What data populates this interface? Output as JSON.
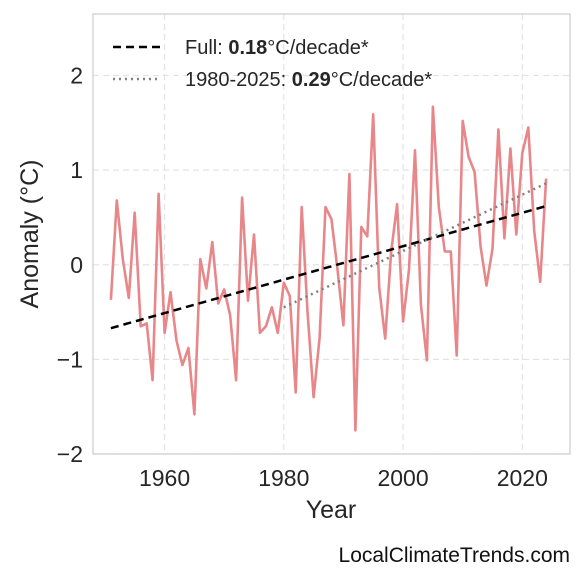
{
  "credit": "LocalClimateTrends.com",
  "chart_data": {
    "type": "line",
    "xlabel": "Year",
    "ylabel": "Anomaly (°C)",
    "xlim": [
      1948,
      2028
    ],
    "ylim": [
      -2,
      2.65
    ],
    "x_ticks": [
      1960,
      1980,
      2000,
      2020
    ],
    "y_ticks": [
      -2,
      -1,
      0,
      1,
      2
    ],
    "y_tick_labels": [
      "−2",
      "−1",
      "0",
      "1",
      "2"
    ],
    "grid": true,
    "legend_position": "top-left",
    "colors": {
      "series": "#e8878a",
      "full_trend": "#000000",
      "recent_trend": "#808080"
    },
    "series": [
      {
        "x": [
          1951,
          1952,
          1953,
          1954,
          1955,
          1956,
          1957,
          1958,
          1959,
          1960,
          1961,
          1962,
          1963,
          1964,
          1965,
          1966,
          1967,
          1968,
          1969,
          1970,
          1971,
          1972,
          1973,
          1974,
          1975,
          1976,
          1977,
          1978,
          1979,
          1980,
          1981,
          1982,
          1983,
          1984,
          1985,
          1986,
          1987,
          1988,
          1989,
          1990,
          1991,
          1992,
          1993,
          1994,
          1995,
          1996,
          1997,
          1998,
          1999,
          2000,
          2001,
          2002,
          2003,
          2004,
          2005,
          2006,
          2007,
          2008,
          2009,
          2010,
          2011,
          2012,
          2013,
          2014,
          2015,
          2016,
          2017,
          2018,
          2019,
          2020,
          2021,
          2022,
          2023,
          2024
        ],
        "values": [
          -0.37,
          0.68,
          0.06,
          -0.35,
          0.55,
          -0.65,
          -0.62,
          -1.22,
          0.75,
          -0.72,
          -0.29,
          -0.8,
          -1.06,
          -0.88,
          -1.58,
          0.06,
          -0.25,
          0.24,
          -0.41,
          -0.26,
          -0.53,
          -1.22,
          0.71,
          -0.38,
          0.32,
          -0.72,
          -0.65,
          -0.45,
          -0.72,
          -0.19,
          -0.33,
          -1.35,
          0.61,
          -0.51,
          -1.4,
          -0.77,
          0.61,
          0.48,
          -0.05,
          -0.64,
          0.96,
          -1.75,
          0.4,
          0.3,
          1.59,
          -0.24,
          -0.78,
          0.13,
          0.64,
          -0.6,
          -0.05,
          1.21,
          -0.42,
          -1.01,
          1.67,
          0.61,
          0.14,
          0.14,
          -0.96,
          1.52,
          1.14,
          0.98,
          0.19,
          -0.22,
          0.17,
          1.43,
          0.28,
          1.23,
          0.32,
          1.18,
          1.45,
          0.36,
          -0.18,
          0.91
        ]
      }
    ],
    "trend_lines": [
      {
        "name": "Full",
        "rate": "0.18",
        "unit": "°C/decade*",
        "start": [
          1951,
          -0.67
        ],
        "end": [
          2024,
          0.62
        ],
        "style": "dashed"
      },
      {
        "name": "1980-2025",
        "rate": "0.29",
        "unit": "°C/decade*",
        "start": [
          1980,
          -0.45
        ],
        "end": [
          2024,
          0.86
        ],
        "style": "dotted"
      }
    ]
  }
}
